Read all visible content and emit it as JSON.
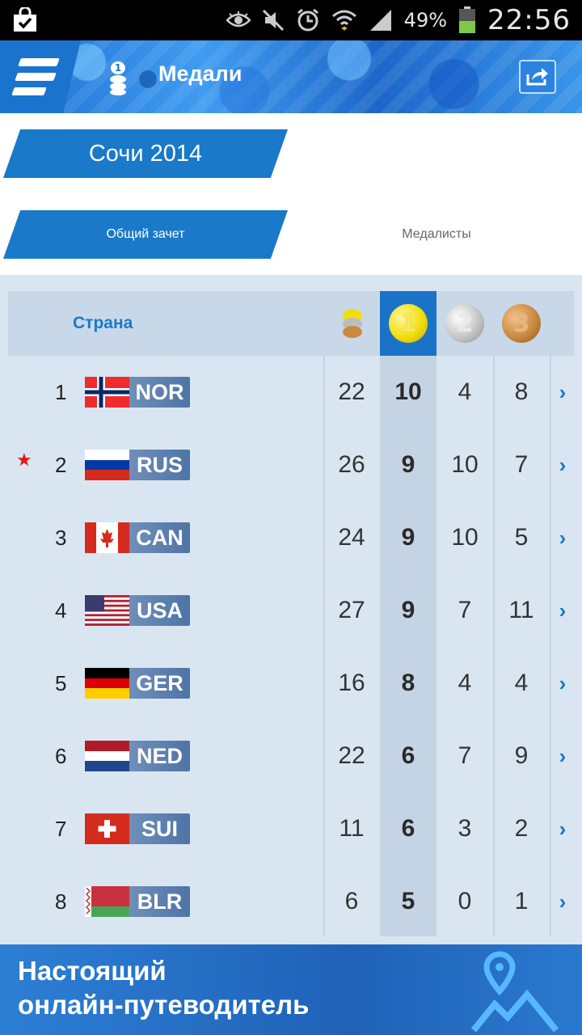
{
  "statusbar": {
    "battery_pct": "49%",
    "time": "22:56"
  },
  "header": {
    "title": "Медали"
  },
  "tabs": {
    "year": "Сочи 2014",
    "overall": "Общий зачет",
    "medalists": "Медалисты"
  },
  "table": {
    "header_country": "Страна",
    "medal_labels": {
      "gold": "1",
      "silver": "2",
      "bronze": "3"
    },
    "rows": [
      {
        "rank": "1",
        "code": "NOR",
        "total": "22",
        "gold": "10",
        "silver": "4",
        "bronze": "8",
        "starred": false
      },
      {
        "rank": "2",
        "code": "RUS",
        "total": "26",
        "gold": "9",
        "silver": "10",
        "bronze": "7",
        "starred": true
      },
      {
        "rank": "3",
        "code": "CAN",
        "total": "24",
        "gold": "9",
        "silver": "10",
        "bronze": "5",
        "starred": false
      },
      {
        "rank": "4",
        "code": "USA",
        "total": "27",
        "gold": "9",
        "silver": "7",
        "bronze": "11",
        "starred": false
      },
      {
        "rank": "5",
        "code": "GER",
        "total": "16",
        "gold": "8",
        "silver": "4",
        "bronze": "4",
        "starred": false
      },
      {
        "rank": "6",
        "code": "NED",
        "total": "22",
        "gold": "6",
        "silver": "7",
        "bronze": "9",
        "starred": false
      },
      {
        "rank": "7",
        "code": "SUI",
        "total": "11",
        "gold": "6",
        "silver": "3",
        "bronze": "2",
        "starred": false
      },
      {
        "rank": "8",
        "code": "BLR",
        "total": "6",
        "gold": "5",
        "silver": "0",
        "bronze": "1",
        "starred": false
      }
    ]
  },
  "banner": {
    "line1": "Настоящий",
    "line2": "онлайн-путеводитель"
  },
  "colors": {
    "accent": "#1a79c8",
    "star": "#e01818"
  }
}
